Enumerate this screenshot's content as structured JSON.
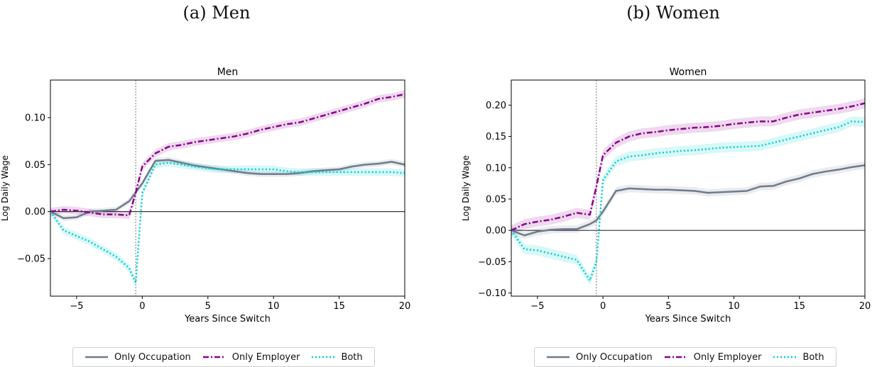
{
  "captions": {
    "a": "(a) Men",
    "b": "(b) Women"
  },
  "legend": {
    "only_occupation": "Only Occupation",
    "only_employer": "Only Employer",
    "both": "Both"
  },
  "colors": {
    "only_occupation": "#6e7b8b",
    "only_employer": "#8b008b",
    "both": "#00ced1",
    "zero_line": "#333333",
    "event_line": "#555555"
  },
  "chart_data": [
    {
      "type": "line",
      "title": "Men",
      "xlabel": "Years Since Switch",
      "ylabel": "Log Daily Wage",
      "xlim": [
        -7,
        20
      ],
      "ylim": [
        -0.09,
        0.14
      ],
      "xticks": [
        -5,
        0,
        5,
        10,
        15,
        20
      ],
      "xtick_labels": [
        "−5",
        "0",
        "5",
        "10",
        "15",
        "20"
      ],
      "yticks": [
        -0.05,
        0.0,
        0.05,
        0.1
      ],
      "ytick_labels": [
        "−0.05",
        "0.00",
        "0.05",
        "0.10"
      ],
      "event_x": -0.5,
      "series": [
        {
          "name": "Only Occupation",
          "key": "only_occupation",
          "dash": "solid",
          "x": [
            -7,
            -6,
            -5,
            -4,
            -3,
            -2,
            -1,
            0,
            1,
            2,
            3,
            4,
            5,
            6,
            7,
            8,
            9,
            10,
            11,
            12,
            13,
            14,
            15,
            16,
            17,
            18,
            19,
            20
          ],
          "y": [
            0,
            -0.007,
            -0.006,
            0,
            0.001,
            0.002,
            0.011,
            0.03,
            0.054,
            0.055,
            0.052,
            0.049,
            0.047,
            0.045,
            0.043,
            0.041,
            0.04,
            0.04,
            0.04,
            0.041,
            0.043,
            0.044,
            0.045,
            0.048,
            0.05,
            0.051,
            0.053,
            0.05
          ],
          "band": 0.003
        },
        {
          "name": "Only Employer",
          "key": "only_employer",
          "dash": "dashdot",
          "x": [
            -7,
            -6,
            -5,
            -4,
            -3,
            -2,
            -1,
            -0.5,
            0,
            1,
            2,
            3,
            4,
            5,
            6,
            7,
            8,
            9,
            10,
            11,
            12,
            13,
            14,
            15,
            16,
            17,
            18,
            19,
            20
          ],
          "y": [
            0,
            0.002,
            0.001,
            -0.001,
            -0.003,
            -0.003,
            -0.004,
            0.02,
            0.048,
            0.062,
            0.069,
            0.071,
            0.074,
            0.076,
            0.078,
            0.08,
            0.083,
            0.087,
            0.09,
            0.093,
            0.095,
            0.099,
            0.103,
            0.107,
            0.111,
            0.115,
            0.12,
            0.122,
            0.125
          ],
          "band": 0.004
        },
        {
          "name": "Both",
          "key": "both",
          "dash": "dotted",
          "x": [
            -7,
            -6,
            -5,
            -4,
            -3,
            -2,
            -1,
            -0.5,
            0,
            1,
            2,
            3,
            4,
            5,
            6,
            7,
            8,
            9,
            10,
            11,
            12,
            13,
            14,
            15,
            16,
            17,
            18,
            19,
            20
          ],
          "y": [
            0,
            -0.02,
            -0.026,
            -0.032,
            -0.04,
            -0.048,
            -0.06,
            -0.076,
            0.02,
            0.05,
            0.052,
            0.05,
            0.048,
            0.046,
            0.045,
            0.045,
            0.045,
            0.045,
            0.045,
            0.043,
            0.042,
            0.042,
            0.042,
            0.042,
            0.042,
            0.042,
            0.042,
            0.042,
            0.041
          ],
          "band": 0.004
        }
      ]
    },
    {
      "type": "line",
      "title": "Women",
      "xlabel": "Years Since Switch",
      "ylabel": "Log Daily Wage",
      "xlim": [
        -7,
        20
      ],
      "ylim": [
        -0.105,
        0.24
      ],
      "xticks": [
        -5,
        0,
        5,
        10,
        15,
        20
      ],
      "xtick_labels": [
        "−5",
        "0",
        "5",
        "10",
        "15",
        "20"
      ],
      "yticks": [
        -0.1,
        -0.05,
        0.0,
        0.05,
        0.1,
        0.15,
        0.2
      ],
      "ytick_labels": [
        "−0.10",
        "−0.05",
        "0.00",
        "0.05",
        "0.10",
        "0.15",
        "0.20"
      ],
      "event_x": -0.5,
      "series": [
        {
          "name": "Only Occupation",
          "key": "only_occupation",
          "dash": "solid",
          "x": [
            -7,
            -6,
            -5,
            -4,
            -3,
            -2,
            -1,
            -0.5,
            0,
            1,
            2,
            3,
            4,
            5,
            6,
            7,
            8,
            9,
            10,
            11,
            12,
            13,
            14,
            15,
            16,
            17,
            18,
            19,
            20
          ],
          "y": [
            0,
            -0.008,
            -0.002,
            0.001,
            0.002,
            0.002,
            0.01,
            0.016,
            0.03,
            0.063,
            0.067,
            0.066,
            0.065,
            0.065,
            0.064,
            0.063,
            0.06,
            0.061,
            0.062,
            0.063,
            0.07,
            0.071,
            0.078,
            0.083,
            0.09,
            0.094,
            0.097,
            0.101,
            0.104
          ],
          "band": 0.006
        },
        {
          "name": "Only Employer",
          "key": "only_employer",
          "dash": "dashdot",
          "x": [
            -7,
            -6,
            -5,
            -4,
            -3,
            -2,
            -1,
            -0.5,
            0,
            1,
            2,
            3,
            4,
            5,
            6,
            7,
            8,
            9,
            10,
            11,
            12,
            13,
            14,
            15,
            16,
            17,
            18,
            19,
            20
          ],
          "y": [
            0,
            0.01,
            0.014,
            0.017,
            0.022,
            0.028,
            0.025,
            0.07,
            0.12,
            0.14,
            0.15,
            0.155,
            0.157,
            0.16,
            0.162,
            0.164,
            0.165,
            0.167,
            0.17,
            0.172,
            0.174,
            0.174,
            0.18,
            0.185,
            0.188,
            0.191,
            0.194,
            0.198,
            0.203
          ],
          "band": 0.008
        },
        {
          "name": "Both",
          "key": "both",
          "dash": "dotted",
          "x": [
            -7,
            -6,
            -5,
            -4,
            -3,
            -2,
            -1,
            -0.5,
            0,
            1,
            2,
            3,
            4,
            5,
            6,
            7,
            8,
            9,
            10,
            11,
            12,
            13,
            14,
            15,
            16,
            17,
            18,
            19,
            20
          ],
          "y": [
            0,
            -0.03,
            -0.032,
            -0.037,
            -0.042,
            -0.047,
            -0.08,
            -0.05,
            0.08,
            0.11,
            0.118,
            0.12,
            0.123,
            0.125,
            0.127,
            0.128,
            0.13,
            0.132,
            0.133,
            0.134,
            0.135,
            0.14,
            0.145,
            0.15,
            0.155,
            0.16,
            0.165,
            0.174,
            0.173
          ],
          "band": 0.008
        }
      ]
    }
  ]
}
